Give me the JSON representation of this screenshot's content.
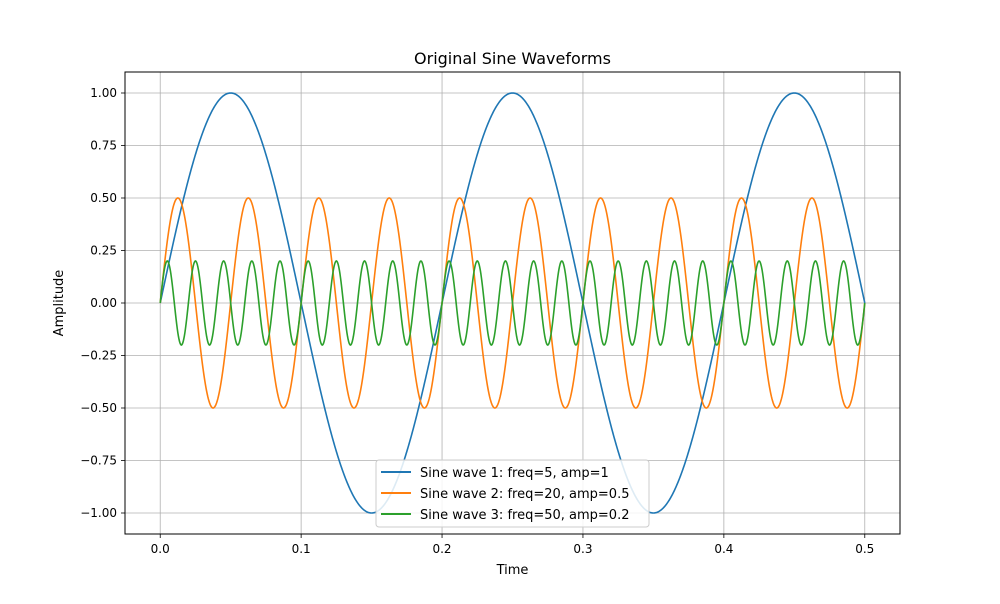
{
  "chart_data": {
    "type": "line",
    "title": "Original Sine Waveforms",
    "xlabel": "Time",
    "ylabel": "Amplitude",
    "xlim": [
      -0.025,
      0.525
    ],
    "ylim": [
      -1.1,
      1.1
    ],
    "grid": true,
    "legend_position": "bottom-center",
    "x_ticks": [
      0.0,
      0.1,
      0.2,
      0.3,
      0.4,
      0.5
    ],
    "x_tick_labels": [
      "0.0",
      "0.1",
      "0.2",
      "0.3",
      "0.4",
      "0.5"
    ],
    "y_ticks": [
      -1.0,
      -0.75,
      -0.5,
      -0.25,
      0.0,
      0.25,
      0.5,
      0.75,
      1.0
    ],
    "y_tick_labels": [
      "−1.00",
      "−0.75",
      "−0.50",
      "−0.25",
      "0.00",
      "0.25",
      "0.50",
      "0.75",
      "1.00"
    ],
    "x_range": [
      0.0,
      0.5
    ],
    "series": [
      {
        "name": "Sine wave 1: freq=5, amp=1",
        "frequency": 5,
        "amplitude": 1,
        "color": "#1f77b4"
      },
      {
        "name": "Sine wave 2: freq=20, amp=0.5",
        "frequency": 20,
        "amplitude": 0.5,
        "color": "#ff7f0e"
      },
      {
        "name": "Sine wave 3: freq=50, amp=0.2",
        "frequency": 50,
        "amplitude": 0.2,
        "color": "#2ca02c"
      }
    ]
  }
}
